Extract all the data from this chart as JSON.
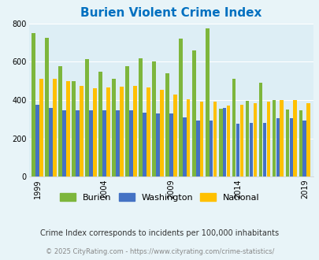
{
  "title": "Burien Violent Crime Index",
  "years": [
    1999,
    2000,
    2001,
    2002,
    2003,
    2004,
    2005,
    2006,
    2007,
    2008,
    2009,
    2010,
    2011,
    2012,
    2013,
    2014,
    2015,
    2016,
    2017,
    2018,
    2019
  ],
  "burien": [
    750,
    725,
    578,
    500,
    615,
    550,
    510,
    575,
    618,
    600,
    540,
    720,
    660,
    775,
    355,
    510,
    395,
    490,
    400,
    350,
    345
  ],
  "washington": [
    375,
    360,
    348,
    345,
    348,
    345,
    348,
    345,
    335,
    330,
    330,
    310,
    295,
    295,
    360,
    278,
    280,
    280,
    305,
    305,
    295
  ],
  "national": [
    510,
    510,
    500,
    475,
    460,
    465,
    470,
    475,
    465,
    455,
    430,
    403,
    390,
    390,
    370,
    375,
    385,
    390,
    400,
    400,
    385
  ],
  "burien_color": "#7db63c",
  "washington_color": "#4472c4",
  "national_color": "#ffc000",
  "bg_color": "#e8f4f8",
  "plot_bg_color": "#ddeef5",
  "title_color": "#0070c0",
  "ylabel_max": 800,
  "yticks": [
    0,
    200,
    400,
    600,
    800
  ],
  "tick_years": [
    1999,
    2004,
    2009,
    2014,
    2019
  ],
  "footnote1": "Crime Index corresponds to incidents per 100,000 inhabitants",
  "footnote2": "© 2025 CityRating.com - https://www.cityrating.com/crime-statistics/",
  "legend_labels": [
    "Burien",
    "Washington",
    "National"
  ]
}
